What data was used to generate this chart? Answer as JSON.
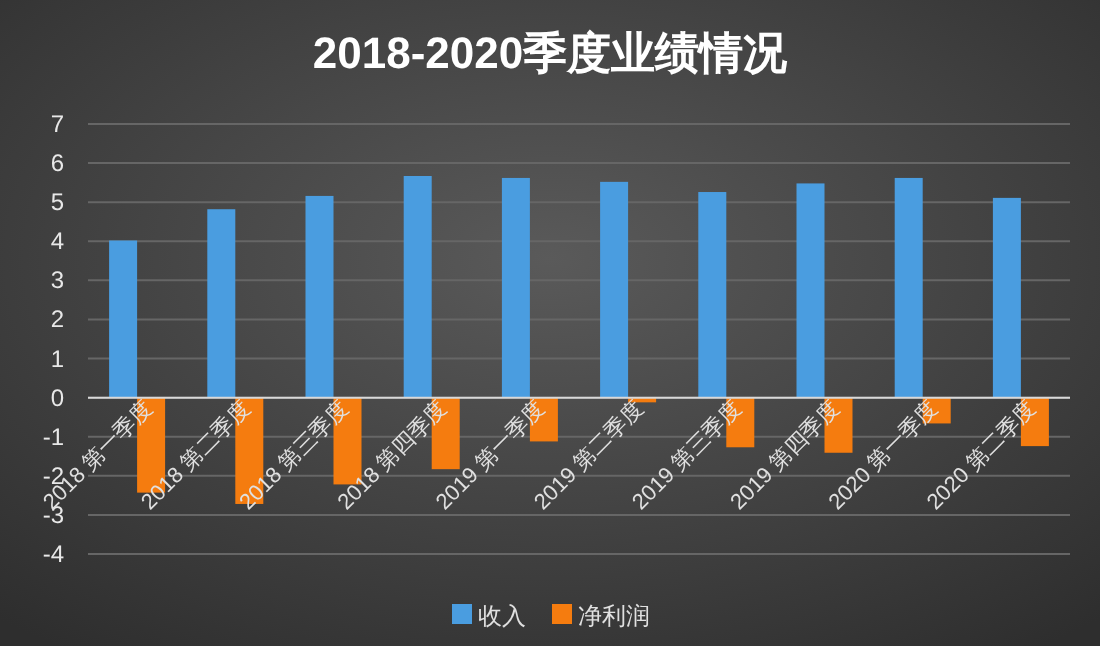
{
  "chart_data": {
    "type": "bar",
    "title": "2018-2020季度业绩情况",
    "categories": [
      "2018 第一季度",
      "2018 第二季度",
      "2018 第三季度",
      "2018 第四季度",
      "2019 第一季度",
      "2019 第二季度",
      "2019 第三季度",
      "2019 第四季度",
      "2020 第一季度",
      "2020 第二季度"
    ],
    "series": [
      {
        "name": "收入",
        "color": "#4a9de0",
        "values": [
          4.02,
          4.82,
          5.16,
          5.67,
          5.62,
          5.52,
          5.26,
          5.48,
          5.62,
          5.11
        ]
      },
      {
        "name": "净利润",
        "color": "#f57c0f",
        "values": [
          -2.43,
          -2.72,
          -2.22,
          -1.83,
          -1.12,
          -0.12,
          -1.27,
          -1.41,
          -0.66,
          -1.24
        ]
      }
    ],
    "ylim": [
      -4,
      7
    ],
    "yticks": [
      -4,
      -3,
      -2,
      -1,
      0,
      1,
      2,
      3,
      4,
      5,
      6,
      7
    ],
    "grid": "y",
    "legend": "bottom"
  }
}
